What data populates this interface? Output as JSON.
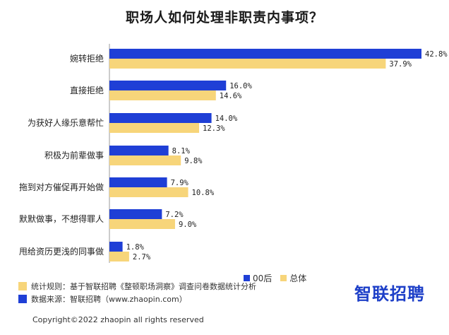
{
  "chart_data": {
    "type": "bar",
    "orientation": "horizontal",
    "title": "职场人如何处理非职责内事项？",
    "categories": [
      "婉转拒绝",
      "直接拒绝",
      "为获好人缘乐意帮忙",
      "积极为前辈做事",
      "拖到对方催促再开始做",
      "默默做事，不想得罪人",
      "甩给资历更浅的同事做"
    ],
    "series": [
      {
        "name": "00后",
        "color": "#1f3fd6",
        "values": [
          42.8,
          16.0,
          14.0,
          8.1,
          7.9,
          7.2,
          1.8
        ],
        "labels": [
          "42.8%",
          "16.0%",
          "14.0%",
          "8.1%",
          "7.9%",
          "7.2%",
          "1.8%"
        ]
      },
      {
        "name": "总体",
        "color": "#f7d57a",
        "values": [
          37.9,
          14.6,
          12.3,
          9.8,
          10.8,
          9.0,
          2.7
        ],
        "labels": [
          "37.9%",
          "14.6%",
          "12.3%",
          "9.8%",
          "10.8%",
          "9.0%",
          "2.7%"
        ]
      }
    ],
    "xlim": [
      0,
      42.8
    ],
    "legend": "bottom-right",
    "grid": false
  },
  "footer": {
    "note1": "统计规则：基于智联招聘《整顿职场洞察》调查问卷数据统计分析",
    "note2": "数据来源：智联招聘（www.zhaopin.com）",
    "brand": "智联招聘",
    "copyright": "Copyright©2022 zhaopin all rights reserved"
  },
  "colors": {
    "note1": "#f7d57a",
    "note2": "#1f3fd6"
  }
}
